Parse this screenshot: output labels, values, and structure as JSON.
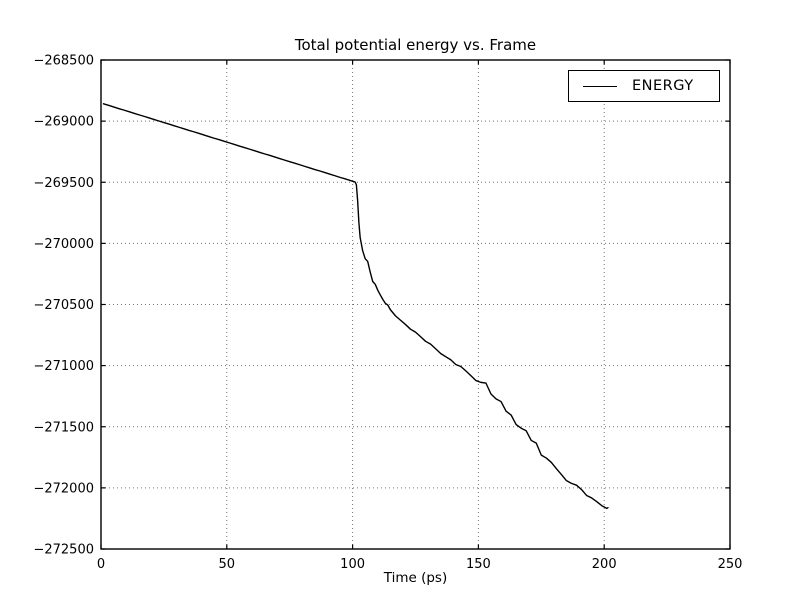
{
  "chart_data": {
    "type": "line",
    "title": "Total potential energy vs. Frame",
    "xlabel": "Time (ps)",
    "ylabel": "",
    "xlim": [
      0,
      250
    ],
    "ylim": [
      -272500,
      -268500
    ],
    "xticks": [
      0,
      50,
      100,
      150,
      200,
      250
    ],
    "yticks": [
      -268500,
      -269000,
      -269500,
      -270000,
      -270500,
      -271000,
      -271500,
      -272000,
      -272500
    ],
    "xtick_labels": [
      "0",
      "50",
      "100",
      "150",
      "200",
      "250"
    ],
    "ytick_labels": [
      "−268500",
      "−269000",
      "−269500",
      "−270000",
      "−270500",
      "−271000",
      "−271500",
      "−272000",
      "−272500"
    ],
    "grid": "dotted",
    "legend_position": "upper right",
    "line_color": "#000000",
    "background_color": "#ffffff",
    "series": [
      {
        "name": "ENERGY",
        "points": [
          [
            1,
            -268858
          ],
          [
            3,
            -268871
          ],
          [
            5,
            -268884
          ],
          [
            7,
            -268897
          ],
          [
            9,
            -268909
          ],
          [
            11,
            -268922
          ],
          [
            13,
            -268935
          ],
          [
            15,
            -268948
          ],
          [
            17,
            -268960
          ],
          [
            19,
            -268973
          ],
          [
            21,
            -268986
          ],
          [
            23,
            -268999
          ],
          [
            25,
            -269012
          ],
          [
            27,
            -269024
          ],
          [
            29,
            -269037
          ],
          [
            31,
            -269050
          ],
          [
            33,
            -269063
          ],
          [
            35,
            -269076
          ],
          [
            37,
            -269088
          ],
          [
            39,
            -269101
          ],
          [
            41,
            -269114
          ],
          [
            43,
            -269127
          ],
          [
            45,
            -269140
          ],
          [
            47,
            -269152
          ],
          [
            49,
            -269165
          ],
          [
            51,
            -269178
          ],
          [
            53,
            -269191
          ],
          [
            55,
            -269204
          ],
          [
            57,
            -269216
          ],
          [
            59,
            -269229
          ],
          [
            61,
            -269242
          ],
          [
            63,
            -269255
          ],
          [
            65,
            -269268
          ],
          [
            67,
            -269280
          ],
          [
            69,
            -269293
          ],
          [
            71,
            -269306
          ],
          [
            73,
            -269319
          ],
          [
            75,
            -269332
          ],
          [
            77,
            -269344
          ],
          [
            79,
            -269357
          ],
          [
            81,
            -269370
          ],
          [
            83,
            -269383
          ],
          [
            85,
            -269396
          ],
          [
            87,
            -269408
          ],
          [
            89,
            -269421
          ],
          [
            91,
            -269434
          ],
          [
            93,
            -269447
          ],
          [
            95,
            -269460
          ],
          [
            97,
            -269472
          ],
          [
            99,
            -269485
          ],
          [
            101,
            -269498
          ],
          [
            101.5,
            -269520
          ],
          [
            102,
            -269650
          ],
          [
            102.5,
            -269830
          ],
          [
            103,
            -269952
          ],
          [
            104,
            -270060
          ],
          [
            105,
            -270125
          ],
          [
            106,
            -270148
          ],
          [
            107,
            -270235
          ],
          [
            108,
            -270312
          ],
          [
            109,
            -270335
          ],
          [
            110,
            -270383
          ],
          [
            111,
            -270422
          ],
          [
            112,
            -270458
          ],
          [
            113,
            -270490
          ],
          [
            114,
            -270505
          ],
          [
            115,
            -270542
          ],
          [
            117,
            -270592
          ],
          [
            119,
            -270628
          ],
          [
            121,
            -270663
          ],
          [
            123,
            -270702
          ],
          [
            125,
            -270726
          ],
          [
            127,
            -270763
          ],
          [
            129,
            -270801
          ],
          [
            131,
            -270824
          ],
          [
            133,
            -270862
          ],
          [
            135,
            -270901
          ],
          [
            137,
            -270927
          ],
          [
            139,
            -270952
          ],
          [
            141,
            -270991
          ],
          [
            143,
            -271007
          ],
          [
            145,
            -271043
          ],
          [
            147,
            -271082
          ],
          [
            149,
            -271122
          ],
          [
            151,
            -271137
          ],
          [
            153,
            -271143
          ],
          [
            155,
            -271232
          ],
          [
            157,
            -271272
          ],
          [
            159,
            -271294
          ],
          [
            161,
            -271373
          ],
          [
            163,
            -271404
          ],
          [
            165,
            -271482
          ],
          [
            167,
            -271512
          ],
          [
            169,
            -271533
          ],
          [
            171,
            -271612
          ],
          [
            173,
            -271634
          ],
          [
            175,
            -271732
          ],
          [
            177,
            -271756
          ],
          [
            179,
            -271792
          ],
          [
            181,
            -271843
          ],
          [
            183,
            -271891
          ],
          [
            185,
            -271941
          ],
          [
            187,
            -271963
          ],
          [
            189,
            -271978
          ],
          [
            191,
            -272014
          ],
          [
            193,
            -272062
          ],
          [
            195,
            -272082
          ],
          [
            197,
            -272112
          ],
          [
            199,
            -272145
          ],
          [
            200,
            -272156
          ],
          [
            201,
            -272168
          ],
          [
            201.5,
            -272162
          ]
        ]
      }
    ]
  }
}
